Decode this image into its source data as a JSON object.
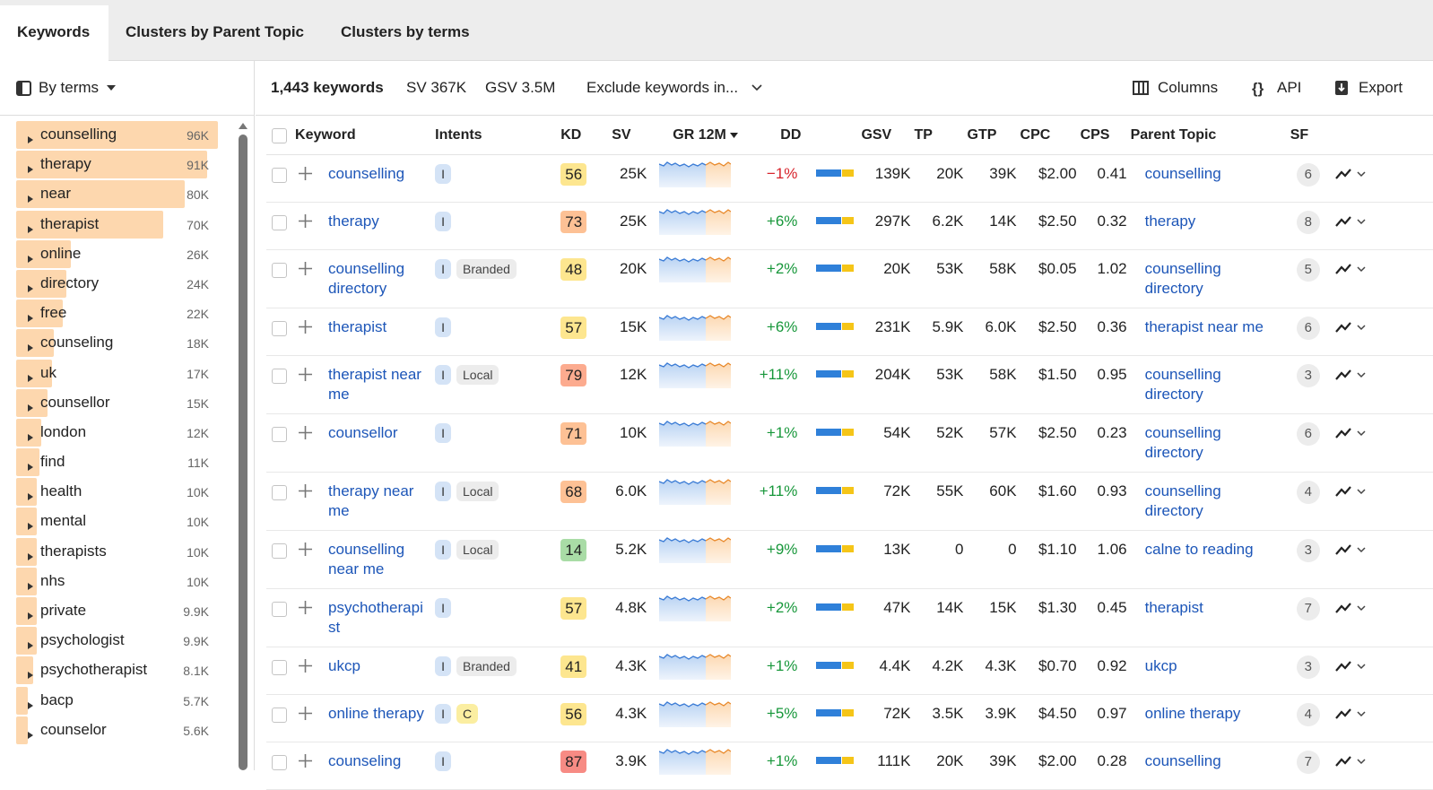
{
  "tabs": [
    "Keywords",
    "Clusters by Parent Topic",
    "Clusters by terms"
  ],
  "sidebar": {
    "grouping": "By terms",
    "terms": [
      {
        "term": "counselling",
        "volume": {
          "value": 96000,
          "label": "96K"
        }
      },
      {
        "term": "therapy",
        "volume": {
          "value": 91000,
          "label": "91K"
        }
      },
      {
        "term": "near",
        "volume": {
          "value": 80000,
          "label": "80K"
        }
      },
      {
        "term": "therapist",
        "volume": {
          "value": 70000,
          "label": "70K"
        }
      },
      {
        "term": "online",
        "volume": {
          "value": 26000,
          "label": "26K"
        }
      },
      {
        "term": "directory",
        "volume": {
          "value": 24000,
          "label": "24K"
        }
      },
      {
        "term": "free",
        "volume": {
          "value": 22000,
          "label": "22K"
        }
      },
      {
        "term": "counseling",
        "volume": {
          "value": 18000,
          "label": "18K"
        }
      },
      {
        "term": "uk",
        "volume": {
          "value": 17000,
          "label": "17K"
        }
      },
      {
        "term": "counsellor",
        "volume": {
          "value": 15000,
          "label": "15K"
        }
      },
      {
        "term": "london",
        "volume": {
          "value": 12000,
          "label": "12K"
        }
      },
      {
        "term": "find",
        "volume": {
          "value": 11000,
          "label": "11K"
        }
      },
      {
        "term": "health",
        "volume": {
          "value": 10000,
          "label": "10K"
        }
      },
      {
        "term": "mental",
        "volume": {
          "value": 10000,
          "label": "10K"
        }
      },
      {
        "term": "therapists",
        "volume": {
          "value": 10000,
          "label": "10K"
        }
      },
      {
        "term": "nhs",
        "volume": {
          "value": 10000,
          "label": "10K"
        }
      },
      {
        "term": "private",
        "volume": {
          "value": 9900,
          "label": "9.9K"
        }
      },
      {
        "term": "psychologist",
        "volume": {
          "value": 9900,
          "label": "9.9K"
        }
      },
      {
        "term": "psychotherapist",
        "volume": {
          "value": 8100,
          "label": "8.1K"
        }
      },
      {
        "term": "bacp",
        "volume": {
          "value": 5700,
          "label": "5.7K"
        }
      },
      {
        "term": "counselor",
        "volume": {
          "value": 5600,
          "label": "5.6K"
        }
      }
    ]
  },
  "toolbar": {
    "count": "1,443 keywords",
    "sv": "SV 367K",
    "gsv": "GSV 3.5M",
    "exclude": "Exclude keywords in...",
    "columns": "Columns",
    "api": "API",
    "export": "Export"
  },
  "table": {
    "columns": [
      "Keyword",
      "Intents",
      "KD",
      "SV",
      "GR 12M",
      "DD",
      "GSV",
      "TP",
      "GTP",
      "CPC",
      "CPS",
      "Parent Topic",
      "SF"
    ],
    "rows": [
      {
        "keyword": "counselling",
        "intents": [
          "I"
        ],
        "kd": 56,
        "sv": "25K",
        "gr": "−1%",
        "gsv": "139K",
        "tp": "20K",
        "gtp": "39K",
        "cpc": "$2.00",
        "cps": 0.41,
        "parent": "counselling",
        "sf": 6
      },
      {
        "keyword": "therapy",
        "intents": [
          "I"
        ],
        "kd": 73,
        "sv": "25K",
        "gr": "+6%",
        "gsv": "297K",
        "tp": "6.2K",
        "gtp": "14K",
        "cpc": "$2.50",
        "cps": 0.32,
        "parent": "therapy",
        "sf": 8
      },
      {
        "keyword": "counselling directory",
        "intents": [
          "I",
          "Branded"
        ],
        "kd": 48,
        "sv": "20K",
        "gr": "+2%",
        "gsv": "20K",
        "tp": "53K",
        "gtp": "58K",
        "cpc": "$0.05",
        "cps": 1.02,
        "parent": "counselling directory",
        "sf": 5
      },
      {
        "keyword": "therapist",
        "intents": [
          "I"
        ],
        "kd": 57,
        "sv": "15K",
        "gr": "+6%",
        "gsv": "231K",
        "tp": "5.9K",
        "gtp": "6.0K",
        "cpc": "$2.50",
        "cps": 0.36,
        "parent": "therapist near me",
        "sf": 6
      },
      {
        "keyword": "therapist near me",
        "intents": [
          "I",
          "Local"
        ],
        "kd": 79,
        "sv": "12K",
        "gr": "+11%",
        "gsv": "204K",
        "tp": "53K",
        "gtp": "58K",
        "cpc": "$1.50",
        "cps": 0.95,
        "parent": "counselling directory",
        "sf": 3
      },
      {
        "keyword": "counsellor",
        "intents": [
          "I"
        ],
        "kd": 71,
        "sv": "10K",
        "gr": "+1%",
        "gsv": "54K",
        "tp": "52K",
        "gtp": "57K",
        "cpc": "$2.50",
        "cps": 0.23,
        "parent": "counselling directory",
        "sf": 6
      },
      {
        "keyword": "therapy near me",
        "intents": [
          "I",
          "Local"
        ],
        "kd": 68,
        "sv": "6.0K",
        "gr": "+11%",
        "gsv": "72K",
        "tp": "55K",
        "gtp": "60K",
        "cpc": "$1.60",
        "cps": 0.93,
        "parent": "counselling directory",
        "sf": 4
      },
      {
        "keyword": "counselling near me",
        "intents": [
          "I",
          "Local"
        ],
        "kd": 14,
        "sv": "5.2K",
        "gr": "+9%",
        "gsv": "13K",
        "tp": 0,
        "gtp": 0,
        "cpc": "$1.10",
        "cps": 1.06,
        "parent": "calne to reading",
        "sf": 3
      },
      {
        "keyword": "psychotherapist",
        "intents": [
          "I"
        ],
        "kd": 57,
        "sv": "4.8K",
        "gr": "+2%",
        "gsv": "47K",
        "tp": "14K",
        "gtp": "15K",
        "cpc": "$1.30",
        "cps": 0.45,
        "parent": "therapist",
        "sf": 7
      },
      {
        "keyword": "ukcp",
        "intents": [
          "I",
          "Branded"
        ],
        "kd": 41,
        "sv": "4.3K",
        "gr": "+1%",
        "gsv": "4.4K",
        "tp": "4.2K",
        "gtp": "4.3K",
        "cpc": "$0.70",
        "cps": 0.92,
        "parent": "ukcp",
        "sf": 3
      },
      {
        "keyword": "online therapy",
        "intents": [
          "I",
          "C"
        ],
        "kd": 56,
        "sv": "4.3K",
        "gr": "+5%",
        "gsv": "72K",
        "tp": "3.5K",
        "gtp": "3.9K",
        "cpc": "$4.50",
        "cps": 0.97,
        "parent": "online therapy",
        "sf": 4
      },
      {
        "keyword": "counseling",
        "intents": [
          "I"
        ],
        "kd": 87,
        "sv": "3.9K",
        "gr": "+1%",
        "gsv": "111K",
        "tp": "20K",
        "gtp": "39K",
        "cpc": "$2.00",
        "cps": 0.28,
        "parent": "counselling",
        "sf": 7
      }
    ]
  }
}
